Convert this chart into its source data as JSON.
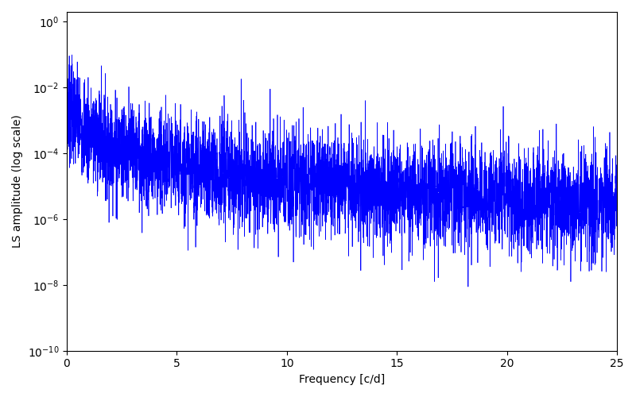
{
  "xlabel": "Frequency [c/d]",
  "ylabel": "LS amplitude (log scale)",
  "line_color": "#0000ff",
  "xlim": [
    0,
    25
  ],
  "ylim": [
    1e-10,
    2.0
  ],
  "background_color": "#ffffff",
  "linewidth": 0.5,
  "seed": 7,
  "n_points": 5000,
  "envelope_scale": 0.001,
  "envelope_knee": 0.5,
  "alpha_power": 1.8,
  "log_noise_std": 1.8
}
